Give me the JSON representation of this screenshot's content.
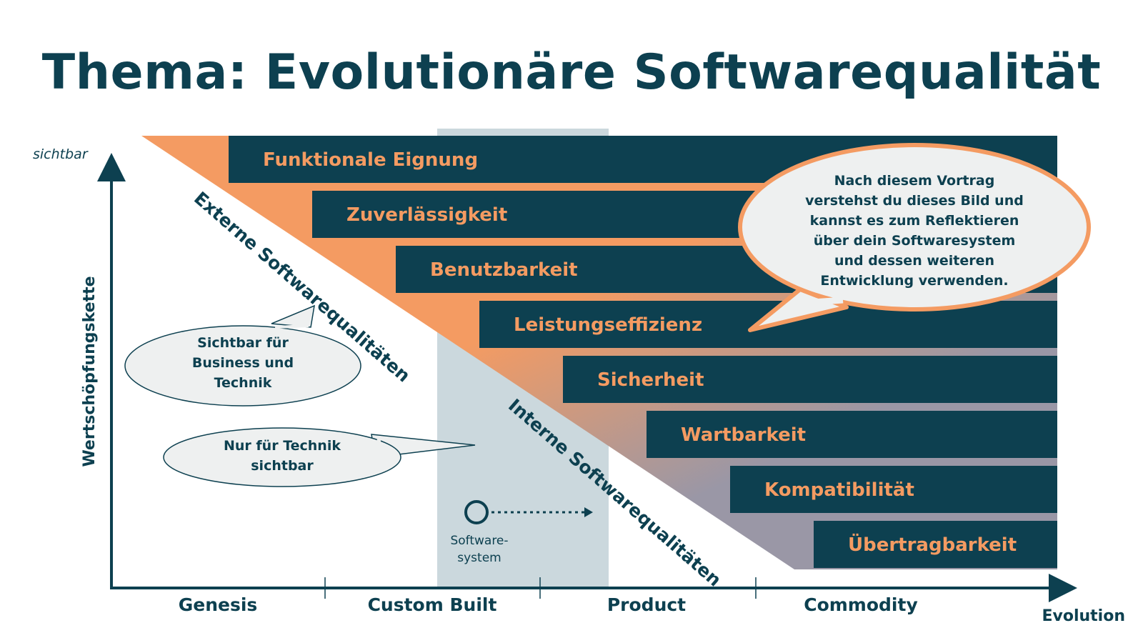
{
  "title": "Thema: Evolutionäre Softwarequalität",
  "y_axis": {
    "label": "Wertschöpfungskette",
    "top_label": "sichtbar"
  },
  "x_axis": {
    "label": "Evolution",
    "stages": [
      "Genesis",
      "Custom Built",
      "Product",
      "Commodity"
    ]
  },
  "qualities": [
    "Funktionale Eignung",
    "Zuverlässigkeit",
    "Benutzbarkeit",
    "Leistungseffizienz",
    "Sicherheit",
    "Wartbarkeit",
    "Kompatibilität",
    "Übertragbarkeit"
  ],
  "diagonal_labels": {
    "external": "Externe Softwarequalitäten",
    "internal": "Interne Softwarequalitäten"
  },
  "bubbles": {
    "business": [
      "Sichtbar für",
      "Business und",
      "Technik"
    ],
    "tech": [
      "Nur für Technik",
      "sichtbar"
    ],
    "talk": [
      "Nach diesem Vortrag",
      "verstehst du dieses Bild und",
      "kannst es zum Reflektieren",
      "über dein Softwaresystem",
      "und dessen weiteren",
      "Entwicklung verwenden."
    ]
  },
  "marker": {
    "label": [
      "Software-",
      "system"
    ]
  },
  "colors": {
    "navy": "#0d4050",
    "orange": "#f49b62",
    "gray_band": "#cbd8dd",
    "bubble_fill": "#eef0f0",
    "internal_gray": "#9a97a6"
  }
}
